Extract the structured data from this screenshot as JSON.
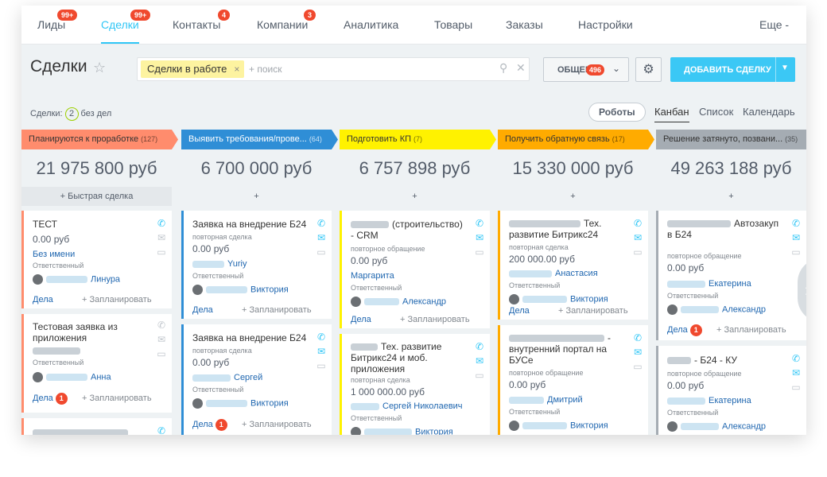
{
  "nav": {
    "items": [
      {
        "label": "Лиды",
        "badge": "99+"
      },
      {
        "label": "Сделки",
        "badge": "99+"
      },
      {
        "label": "Контакты",
        "badge": "4"
      },
      {
        "label": "Компании",
        "badge": "3"
      },
      {
        "label": "Аналитика"
      },
      {
        "label": "Товары"
      },
      {
        "label": "Заказы"
      },
      {
        "label": "Настройки"
      },
      {
        "label": "Еще -"
      }
    ],
    "active": "Сделки"
  },
  "header": {
    "title": "Сделки",
    "filter_chip": "Сделки в работе",
    "search_placeholder": "+ поиск",
    "general_label": "ОБЩЕЕ",
    "general_badge": "496",
    "add_button": "ДОБАВИТЬ СДЕЛКУ"
  },
  "toolbar": {
    "deals_label": "Сделки:",
    "deals_count": "2",
    "deals_suffix": "без дел",
    "robots": "Роботы",
    "views": [
      "Канбан",
      "Список",
      "Календарь"
    ]
  },
  "columns": [
    {
      "stage": "Планируются к проработке",
      "count": "(127)",
      "total": "21 975 800 руб",
      "quick": "+ Быстрая сделка",
      "color": "#ff8c6d",
      "cards": [
        {
          "title": "ТЕСТ",
          "price": "0.00 руб",
          "link": "Без имени",
          "resp_label": "Ответственный",
          "resp_name": "Линура",
          "dela": "Дела",
          "plan": "+ Запланировать"
        },
        {
          "title": "Тестовая заявка из приложения",
          "resp_label": "Ответственный",
          "resp_name": "Анна",
          "dela": "Дела",
          "dela_badge": "1",
          "plan": "+ Запланировать"
        }
      ]
    },
    {
      "stage": "Выявить требования/прове...",
      "count": "(64)",
      "total": "6 700 000 руб",
      "quick": "+",
      "color": "#2f8ed6",
      "cards": [
        {
          "title": "Заявка на внедрение Б24",
          "sub": "повторная сделка",
          "price": "0.00 руб",
          "contact": "Yuriy",
          "resp_label": "Ответственный",
          "resp_name": "Виктория",
          "dela": "Дела",
          "plan": "+ Запланировать"
        },
        {
          "title": "Заявка на внедрение Б24",
          "sub": "повторная сделка",
          "price": "0.00 руб",
          "contact": "Сергей",
          "resp_label": "Ответственный",
          "resp_name": "Виктория",
          "dela": "Дела",
          "dela_badge": "1",
          "plan": "+ Запланировать"
        }
      ]
    },
    {
      "stage": "Подготовить КП",
      "count": "(7)",
      "total": "6 757 898 руб",
      "quick": "+",
      "color": "#fff200",
      "cards": [
        {
          "title": "(строительство) - CRM",
          "sub": "повторное обращение",
          "price": "0.00 руб",
          "link": "Маргарита",
          "resp_label": "Ответственный",
          "resp_name": "Александр",
          "dela": "Дела",
          "plan": "+ Запланировать"
        },
        {
          "title": "Тех. развитие Битрикс24 и моб. приложения",
          "sub": "повторная сделка",
          "price": "1 000 000.00 руб",
          "contact": "Сергей Николаевич",
          "resp_label": "Ответственный",
          "resp_name": "Виктория"
        }
      ]
    },
    {
      "stage": "Получить обратную связь",
      "count": "(17)",
      "total": "15 330 000 руб",
      "quick": "+",
      "color": "#ffab00",
      "cards": [
        {
          "title": "Тех. развитие Битрикс24",
          "sub": "повторная сделка",
          "price": "200 000.00 руб",
          "contact": "Анастасия",
          "resp_label": "Ответственный",
          "resp_name": "Виктория",
          "dela": "Дела",
          "plan": "+ Запланировать"
        },
        {
          "title": "- внутренний портал на БУСе",
          "sub": "повторное обращение",
          "price": "0.00 руб",
          "contact": "Дмитрий",
          "resp_label": "Ответственный",
          "resp_name": "Виктория"
        }
      ]
    },
    {
      "stage": "Решение затянуто, позвани...",
      "count": "(35)",
      "total": "49 263 188 руб",
      "quick": "+",
      "color": "#a5acb3",
      "cards": [
        {
          "title": "Автозакуп в Б24",
          "sub": "повторное обращение",
          "price": "0.00 руб",
          "contact": "Екатерина",
          "resp_label": "Ответственный",
          "resp_name": "Александр",
          "dela": "Дела",
          "dela_badge": "1",
          "plan": "+ Запланировать"
        },
        {
          "title": "- Б24 - КУ",
          "sub": "повторное обращение",
          "price": "0.00 руб",
          "contact": "Екатерина",
          "resp_label": "Ответственный",
          "resp_name": "Александр"
        }
      ]
    }
  ]
}
